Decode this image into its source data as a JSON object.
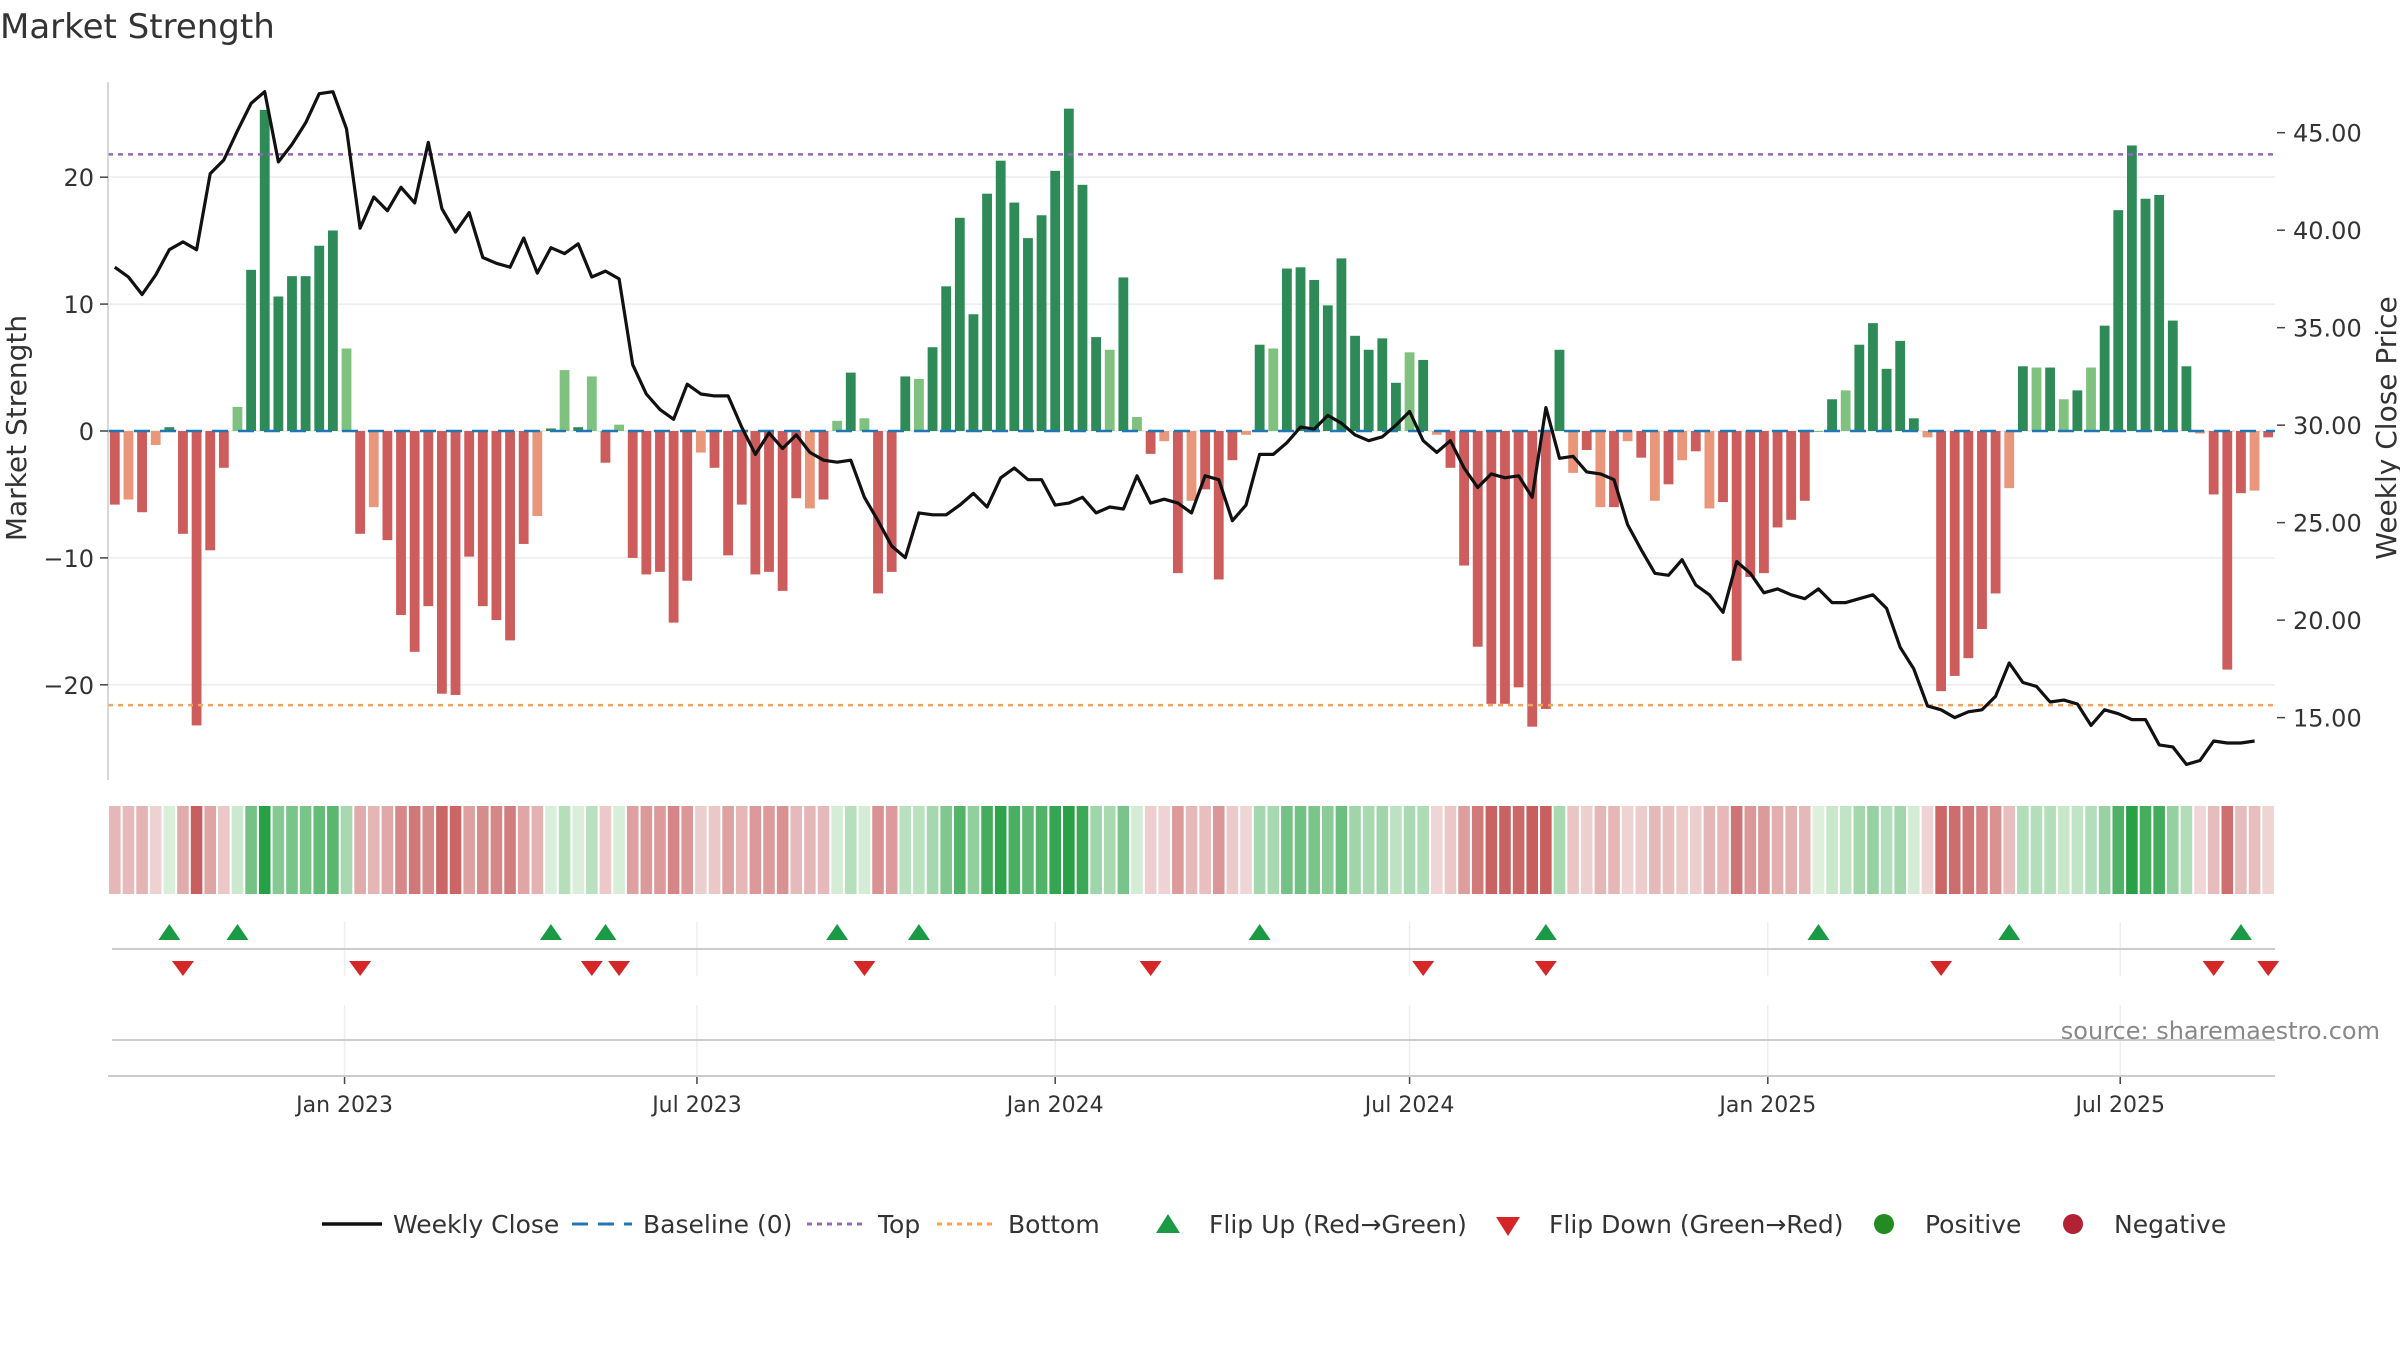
{
  "chart_data": {
    "type": "bar",
    "title": "Market Strength",
    "ylabel_left": "Market Strength",
    "ylabel_right": "Weekly Close Price",
    "source": "source: sharemaestro.com",
    "y_left": {
      "range": [
        -27.5,
        27.5
      ],
      "ticks": [
        -20,
        -10,
        0,
        10,
        20
      ],
      "tick_labels": [
        "−20",
        "−10",
        "0",
        "10",
        "20"
      ]
    },
    "y_right": {
      "range": [
        11.8,
        47.6
      ],
      "ticks": [
        15,
        20,
        25,
        30,
        35,
        40,
        45
      ],
      "tick_labels": [
        "15.00",
        "20.00",
        "25.00",
        "30.00",
        "35.00",
        "40.00",
        "45.00"
      ]
    },
    "x": {
      "start": "2022-09-05",
      "interval_days": 7,
      "count": 159,
      "ticks": [
        {
          "date": "2023-01-01",
          "label": "Jan 2023"
        },
        {
          "date": "2023-07-01",
          "label": "Jul 2023"
        },
        {
          "date": "2024-01-01",
          "label": "Jan 2024"
        },
        {
          "date": "2024-07-01",
          "label": "Jul 2024"
        },
        {
          "date": "2025-01-01",
          "label": "Jan 2025"
        },
        {
          "date": "2025-07-01",
          "label": "Jul 2025"
        }
      ]
    },
    "top_level": 21.8,
    "bottom_level": -21.6,
    "strength": [
      -5.8,
      -5.4,
      -6.4,
      -1.1,
      0.3,
      -8.1,
      -23.2,
      -9.4,
      -2.9,
      1.9,
      12.7,
      25.3,
      10.6,
      12.2,
      12.2,
      14.6,
      15.8,
      6.5,
      -8.1,
      -6.0,
      -8.6,
      -14.5,
      -17.4,
      -13.8,
      -20.7,
      -20.8,
      -9.9,
      -13.8,
      -14.9,
      -16.5,
      -8.9,
      -6.7,
      0.2,
      4.8,
      0.3,
      4.3,
      -2.5,
      0.5,
      -10.0,
      -11.3,
      -11.1,
      -15.1,
      -11.8,
      -1.7,
      -2.9,
      -9.8,
      -5.8,
      -11.3,
      -11.1,
      -12.6,
      -5.3,
      -6.1,
      -5.4,
      0.8,
      4.6,
      1.0,
      -12.8,
      -11.1,
      4.3,
      4.1,
      6.6,
      11.4,
      16.8,
      9.2,
      18.7,
      21.3,
      18.0,
      15.2,
      17.0,
      20.5,
      25.4,
      19.4,
      7.4,
      6.4,
      12.1,
      1.1,
      -1.8,
      -0.8,
      -11.2,
      -5.5,
      -4.6,
      -11.7,
      -2.3,
      -0.3,
      6.8,
      6.5,
      12.8,
      12.9,
      11.9,
      9.9,
      13.6,
      7.5,
      6.4,
      7.3,
      3.8,
      6.2,
      5.6,
      -0.3,
      -2.9,
      -10.6,
      -17.0,
      -21.5,
      -21.5,
      -20.2,
      -23.3,
      -21.9,
      6.4,
      -3.3,
      -1.5,
      -6.0,
      -6.0,
      -0.8,
      -2.1,
      -5.5,
      -4.2,
      -2.3,
      -1.6,
      -6.1,
      -5.6,
      -18.1,
      -11.5,
      -11.2,
      -7.6,
      -7.0,
      -5.5,
      0.0,
      2.5,
      3.2,
      6.8,
      8.5,
      4.9,
      7.1,
      1.0,
      -0.5,
      -20.5,
      -19.3,
      -17.9,
      -15.6,
      -12.8,
      -4.5,
      5.1,
      5.0,
      5.0,
      2.5,
      3.2,
      5.0,
      8.3,
      17.4,
      22.5,
      18.3,
      18.6,
      8.7,
      5.1,
      -0.2,
      -5.0,
      -18.8,
      -4.9,
      -4.7,
      -0.5
    ],
    "weekly_close": [
      38.1,
      37.6,
      36.7,
      37.7,
      39.0,
      39.4,
      39.0,
      42.9,
      43.6,
      45.1,
      46.5,
      47.1,
      43.5,
      44.4,
      45.5,
      47.0,
      47.1,
      45.2,
      40.1,
      41.7,
      41.0,
      42.2,
      41.4,
      44.5,
      41.1,
      39.9,
      40.9,
      38.6,
      38.3,
      38.1,
      39.6,
      37.8,
      39.1,
      38.8,
      39.3,
      37.6,
      37.9,
      37.5,
      33.1,
      31.6,
      30.8,
      30.3,
      32.1,
      31.6,
      31.5,
      31.5,
      29.9,
      28.5,
      29.6,
      28.8,
      29.5,
      28.6,
      28.2,
      28.1,
      28.2,
      26.3,
      25.1,
      23.8,
      23.2,
      25.5,
      25.4,
      25.4,
      25.9,
      26.5,
      25.8,
      27.3,
      27.8,
      27.2,
      27.2,
      25.9,
      26.0,
      26.3,
      25.5,
      25.8,
      25.7,
      27.4,
      26.0,
      26.2,
      26.0,
      25.5,
      27.4,
      27.2,
      25.1,
      25.9,
      28.5,
      28.5,
      29.1,
      29.9,
      29.8,
      30.5,
      30.1,
      29.5,
      29.2,
      29.4,
      30.0,
      30.7,
      29.2,
      28.6,
      29.2,
      27.8,
      26.8,
      27.5,
      27.3,
      27.4,
      26.3,
      30.9,
      28.3,
      28.4,
      27.6,
      27.5,
      27.2,
      24.9,
      23.6,
      22.4,
      22.3,
      23.1,
      21.8,
      21.3,
      20.4,
      23.0,
      22.4,
      21.4,
      21.6,
      21.3,
      21.1,
      21.6,
      20.9,
      20.9,
      21.1,
      21.3,
      20.6,
      18.6,
      17.5,
      15.6,
      15.4,
      15.0,
      15.3,
      15.4,
      16.1,
      17.8,
      16.8,
      16.6,
      15.8,
      15.9,
      15.7,
      14.6,
      15.4,
      15.2,
      14.9,
      14.9,
      13.6,
      13.5,
      12.6,
      12.8,
      13.8,
      13.7,
      13.7,
      13.8
    ],
    "flip_up_indices": [
      4,
      9,
      32,
      36,
      53,
      59,
      84,
      105,
      125,
      139,
      156
    ],
    "flip_down_indices": [
      5,
      18,
      35,
      37,
      55,
      76,
      96,
      105,
      134,
      154,
      158
    ],
    "legend": [
      {
        "label": "Weekly Close",
        "icon": "solid-line",
        "color": "#111111"
      },
      {
        "label": "Baseline (0)",
        "icon": "dashed-line",
        "color": "#1f77b4"
      },
      {
        "label": "Top",
        "icon": "dotted-line",
        "color": "#9467bd"
      },
      {
        "label": "Bottom",
        "icon": "dotted-line",
        "color": "#ff9f4a"
      },
      {
        "label": "Flip Up (Red→Green)",
        "icon": "triangle-up",
        "color": "#1a9a45"
      },
      {
        "label": "Flip Down (Green→Red)",
        "icon": "triangle-down",
        "color": "#d62728"
      },
      {
        "label": "Positive",
        "icon": "circle",
        "color": "#228b22"
      },
      {
        "label": "Negative",
        "icon": "circle",
        "color": "#b22234"
      }
    ],
    "colors": {
      "pos_strong": "#2e8b57",
      "pos_light": "#7fc17f",
      "neg_strong": "#cd5c5c",
      "neg_light": "#e9967a",
      "top_line": "#9467bd",
      "bottom_line": "#f4a460",
      "baseline": "#1f77b4",
      "close_line": "#111111",
      "flip_up": "#1a9a45",
      "flip_down": "#d62728"
    }
  }
}
